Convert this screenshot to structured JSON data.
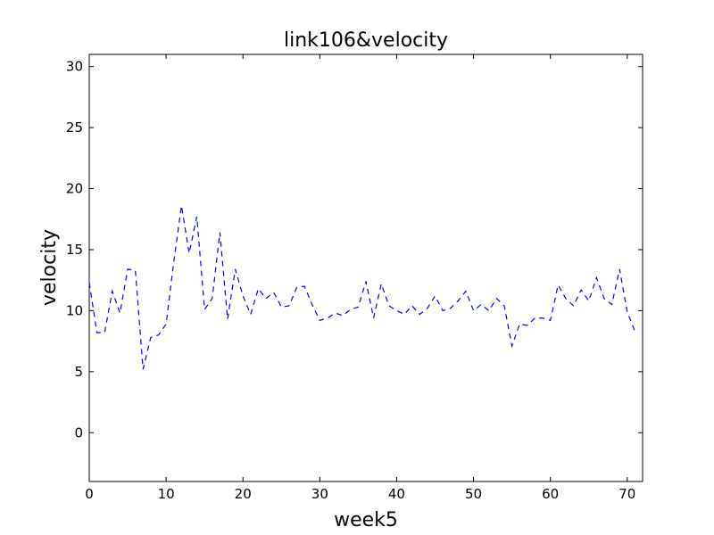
{
  "chart_data": {
    "type": "line",
    "title": "link106&velocity",
    "xlabel": "week5",
    "ylabel": "velocity",
    "xlim": [
      0,
      72
    ],
    "ylim": [
      -4,
      31
    ],
    "x_ticks": [
      0,
      10,
      20,
      30,
      40,
      50,
      60,
      70
    ],
    "y_ticks": [
      0,
      5,
      10,
      15,
      20,
      25,
      30
    ],
    "grid": false,
    "series": [
      {
        "color": "#0000ff",
        "line_style": "dashed",
        "x": [
          0,
          1,
          2,
          3,
          4,
          5,
          6,
          7,
          8,
          9,
          10,
          11,
          12,
          13,
          14,
          15,
          16,
          17,
          18,
          19,
          20,
          21,
          22,
          23,
          24,
          25,
          26,
          27,
          28,
          29,
          30,
          31,
          32,
          33,
          34,
          35,
          36,
          37,
          38,
          39,
          40,
          41,
          42,
          43,
          44,
          45,
          46,
          47,
          48,
          49,
          50,
          51,
          52,
          53,
          54,
          55,
          56,
          57,
          58,
          59,
          60,
          61,
          62,
          63,
          64,
          65,
          66,
          67,
          68,
          69,
          70,
          71
        ],
        "y": [
          12.3,
          8.2,
          8.2,
          11.6,
          9.8,
          13.4,
          13.3,
          5.2,
          7.8,
          8.0,
          8.9,
          14.0,
          18.6,
          14.7,
          17.7,
          10.1,
          11.0,
          16.4,
          9.3,
          13.4,
          11.2,
          9.7,
          11.8,
          11.0,
          11.5,
          10.3,
          10.4,
          11.9,
          12.0,
          10.5,
          9.2,
          9.4,
          9.8,
          9.6,
          10.1,
          10.3,
          12.4,
          9.4,
          12.2,
          10.4,
          10.0,
          9.7,
          10.4,
          9.7,
          10.2,
          11.2,
          10.0,
          10.2,
          10.8,
          11.6,
          10.0,
          10.5,
          10.0,
          11.0,
          10.4,
          7.1,
          8.9,
          8.8,
          9.4,
          9.4,
          9.2,
          12.1,
          11.0,
          10.4,
          11.7,
          10.8,
          12.7,
          11.0,
          10.5,
          13.4,
          9.9,
          8.3
        ]
      }
    ]
  }
}
